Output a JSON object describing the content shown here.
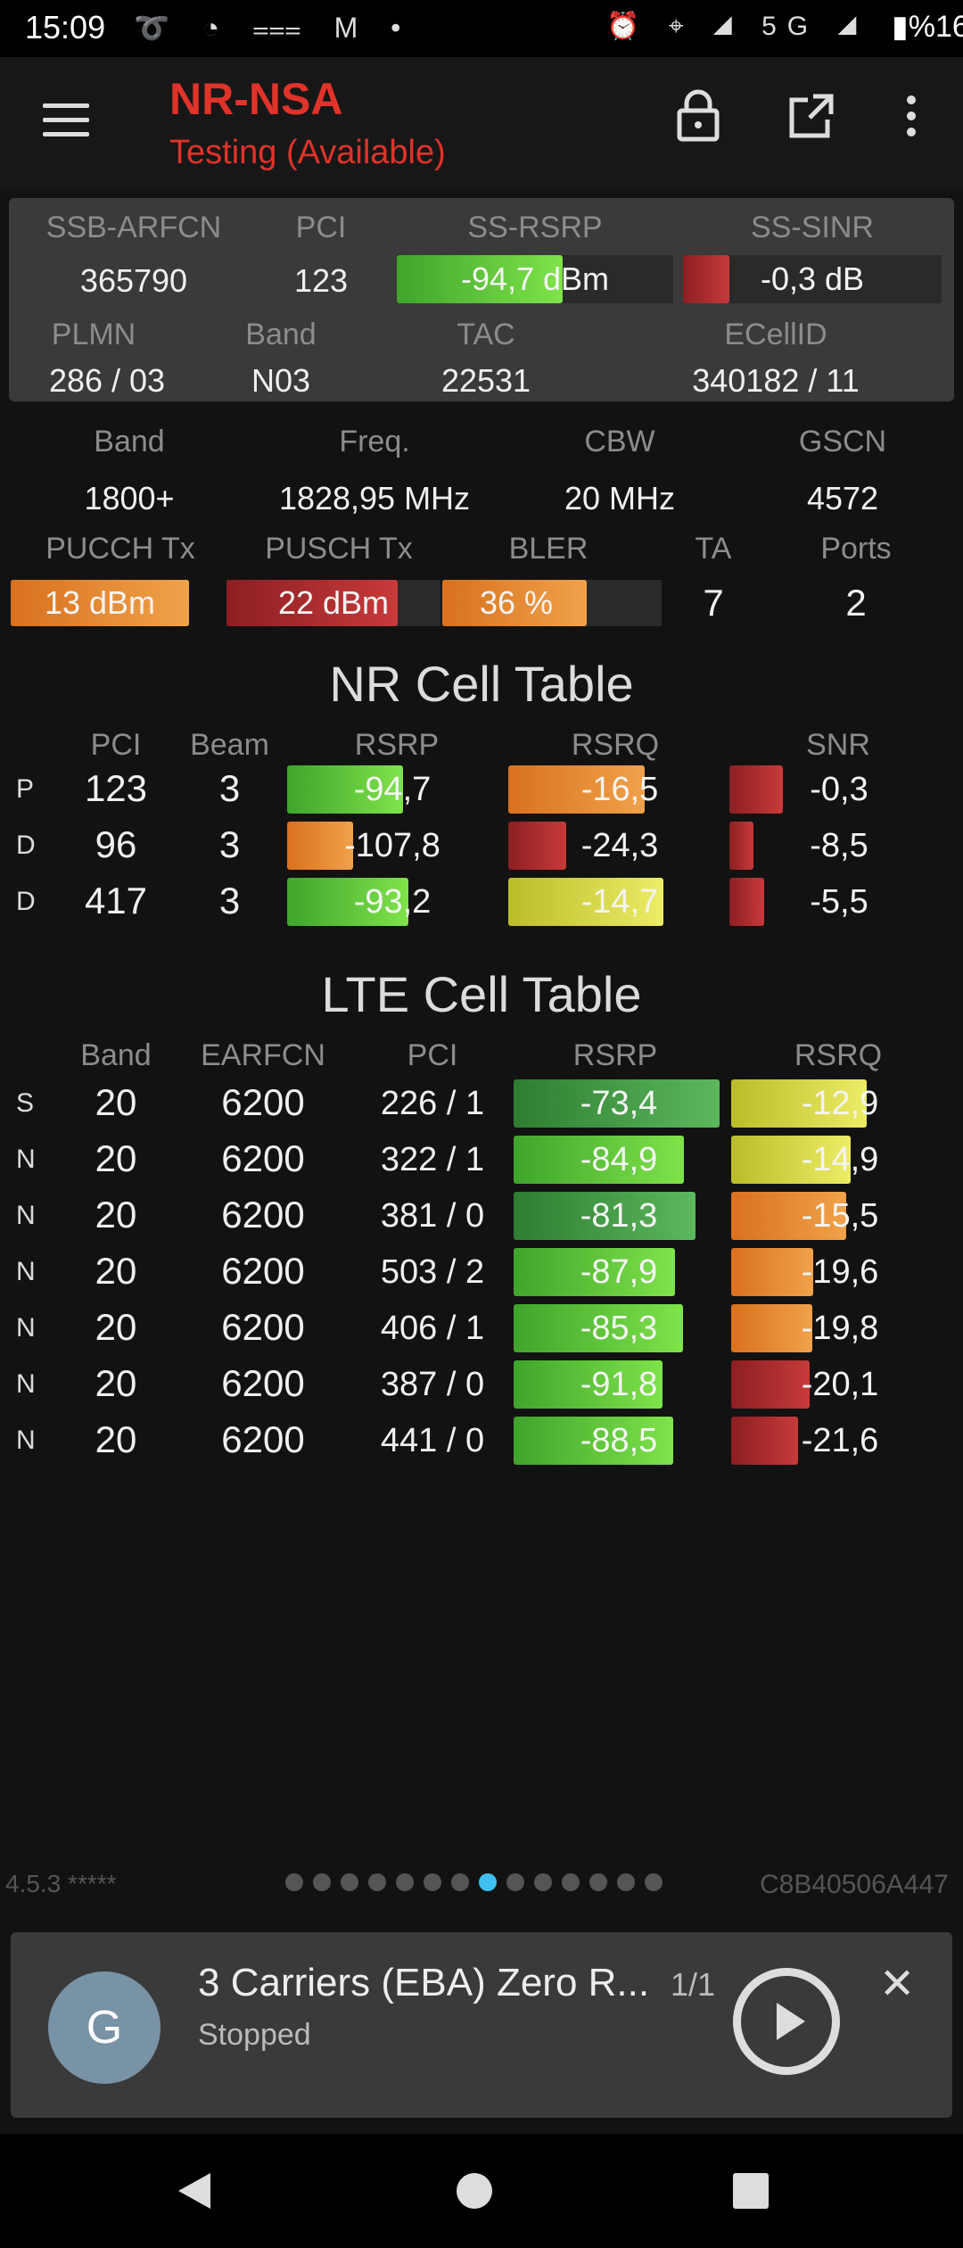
{
  "status_bar": {
    "time": "15:09",
    "network": "5G",
    "battery": "%16"
  },
  "header": {
    "title": "NR-NSA",
    "subtitle": "Testing (Available)"
  },
  "panel": {
    "labels": {
      "arfcn": "SSB-ARFCN",
      "pci": "PCI",
      "rsrp": "SS-RSRP",
      "sinr": "SS-SINR",
      "plmn": "PLMN",
      "band": "Band",
      "tac": "TAC",
      "ecellid": "ECellID"
    },
    "values": {
      "arfcn": "365790",
      "pci": "123",
      "rsrp": "-94,7 dBm",
      "sinr": "-0,3 dB",
      "plmn": "286 / 03",
      "band": "N03",
      "tac": "22531",
      "ecellid": "340182 / 11"
    },
    "rsrp_level": 0.6,
    "sinr_level": 0.18
  },
  "info": {
    "labels": {
      "band": "Band",
      "freq": "Freq.",
      "cbw": "CBW",
      "gscn": "GSCN",
      "pucch": "PUCCH Tx",
      "pusch": "PUSCH Tx",
      "bler": "BLER",
      "ta": "TA",
      "ports": "Ports"
    },
    "values": {
      "band": "1800+",
      "freq": "1828,95 MHz",
      "cbw": "20 MHz",
      "gscn": "4572",
      "pucch": "13 dBm",
      "pusch": "22 dBm",
      "bler": "36 %",
      "ta": "7",
      "ports": "2"
    },
    "pucch_level": 1.0,
    "pusch_level": 0.8,
    "bler_level": 0.66
  },
  "nr_table": {
    "title": "NR Cell Table",
    "headers": {
      "pci": "PCI",
      "beam": "Beam",
      "rsrp": "RSRP",
      "rsrq": "RSRQ",
      "snr": "SNR"
    },
    "rows": [
      {
        "flag": "P",
        "pci": "123",
        "beam": "3",
        "rsrp": "-94,7",
        "rsrq": "-16,5",
        "snr": "-0,3"
      },
      {
        "flag": "D",
        "pci": "96",
        "beam": "3",
        "rsrp": "-107,8",
        "rsrq": "-24,3",
        "snr": "-8,5"
      },
      {
        "flag": "D",
        "pci": "417",
        "beam": "3",
        "rsrp": "-93,2",
        "rsrq": "-14,7",
        "snr": "-5,5"
      }
    ]
  },
  "lte_table": {
    "title": "LTE Cell Table",
    "headers": {
      "band": "Band",
      "earfcn": "EARFCN",
      "pci": "PCI",
      "rsrp": "RSRP",
      "rsrq": "RSRQ"
    },
    "rows": [
      {
        "flag": "S",
        "band": "20",
        "earfcn": "6200",
        "pci": "226 / 1",
        "rsrp": "-73,4",
        "rsrq": "-12,9"
      },
      {
        "flag": "N",
        "band": "20",
        "earfcn": "6200",
        "pci": "322 / 1",
        "rsrp": "-84,9",
        "rsrq": "-14,9"
      },
      {
        "flag": "N",
        "band": "20",
        "earfcn": "6200",
        "pci": "381 / 0",
        "rsrp": "-81,3",
        "rsrq": "-15,5"
      },
      {
        "flag": "N",
        "band": "20",
        "earfcn": "6200",
        "pci": "503 / 2",
        "rsrp": "-87,9",
        "rsrq": "-19,6"
      },
      {
        "flag": "N",
        "band": "20",
        "earfcn": "6200",
        "pci": "406 / 1",
        "rsrp": "-85,3",
        "rsrq": "-19,8"
      },
      {
        "flag": "N",
        "band": "20",
        "earfcn": "6200",
        "pci": "387 / 0",
        "rsrp": "-91,8",
        "rsrq": "-20,1"
      },
      {
        "flag": "N",
        "band": "20",
        "earfcn": "6200",
        "pci": "441 / 0",
        "rsrp": "-88,5",
        "rsrq": "-21,6"
      }
    ]
  },
  "footer": {
    "version": "4.5.3 *****",
    "device_id": "C8B40506A447",
    "page_count": 14,
    "active_page": 7
  },
  "notification": {
    "avatar_letter": "G",
    "title": "3 Carriers (EBA) Zero R...",
    "count": "1/1",
    "status": "Stopped"
  },
  "colors": {
    "accent": "#e0332a",
    "active_dot": "#3fc0f0"
  }
}
